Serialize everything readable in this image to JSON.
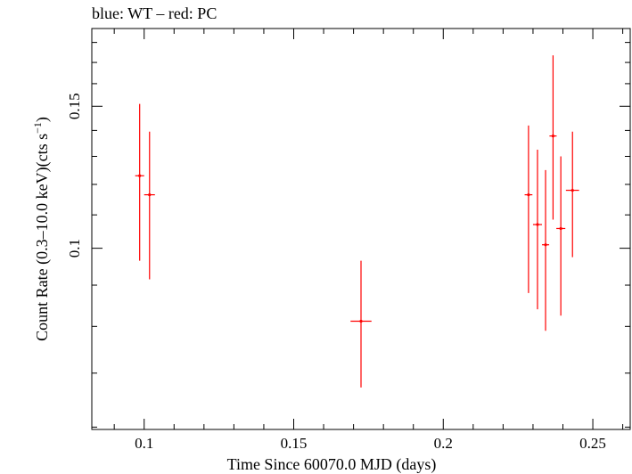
{
  "chart_data": {
    "type": "scatter",
    "title": "blue: WT – red: PC",
    "xlabel": "Time Since 60070.0 MJD (days)",
    "ylabel_main": "Count Rate (0.3–10.0 keV)(cts s",
    "ylabel_sup": "−1",
    "ylabel_end": ")",
    "xlim": [
      0.0825,
      0.2625
    ],
    "ylim": [
      0.0596,
      0.1873
    ],
    "yscale": "log",
    "x_ticks": [
      0.1,
      0.15,
      0.2,
      0.25
    ],
    "x_tick_labels": [
      "0.1",
      "0.15",
      "0.2",
      "0.25"
    ],
    "y_ticks": [
      0.1,
      0.15
    ],
    "y_tick_labels": [
      "0.1",
      "0.15"
    ],
    "grid": false,
    "series": [
      {
        "color": "#ff0000",
        "points": [
          {
            "x": 0.0985,
            "y": 0.123,
            "xerr": 0.0015,
            "ylo": 0.0965,
            "yhi": 0.151
          },
          {
            "x": 0.1018,
            "y": 0.1165,
            "xerr": 0.0018,
            "ylo": 0.0915,
            "yhi": 0.1395
          },
          {
            "x": 0.1725,
            "y": 0.0812,
            "xerr": 0.0035,
            "ylo": 0.0672,
            "yhi": 0.0965
          },
          {
            "x": 0.2285,
            "y": 0.1165,
            "xerr": 0.0013,
            "ylo": 0.088,
            "yhi": 0.142
          },
          {
            "x": 0.2315,
            "y": 0.107,
            "xerr": 0.0015,
            "ylo": 0.084,
            "yhi": 0.1325
          },
          {
            "x": 0.2342,
            "y": 0.101,
            "xerr": 0.0012,
            "ylo": 0.079,
            "yhi": 0.125
          },
          {
            "x": 0.2367,
            "y": 0.1378,
            "xerr": 0.0012,
            "ylo": 0.1085,
            "yhi": 0.1735
          },
          {
            "x": 0.2393,
            "y": 0.1058,
            "xerr": 0.0015,
            "ylo": 0.0825,
            "yhi": 0.13
          },
          {
            "x": 0.2432,
            "y": 0.118,
            "xerr": 0.0022,
            "ylo": 0.0975,
            "yhi": 0.1395
          }
        ]
      }
    ]
  }
}
